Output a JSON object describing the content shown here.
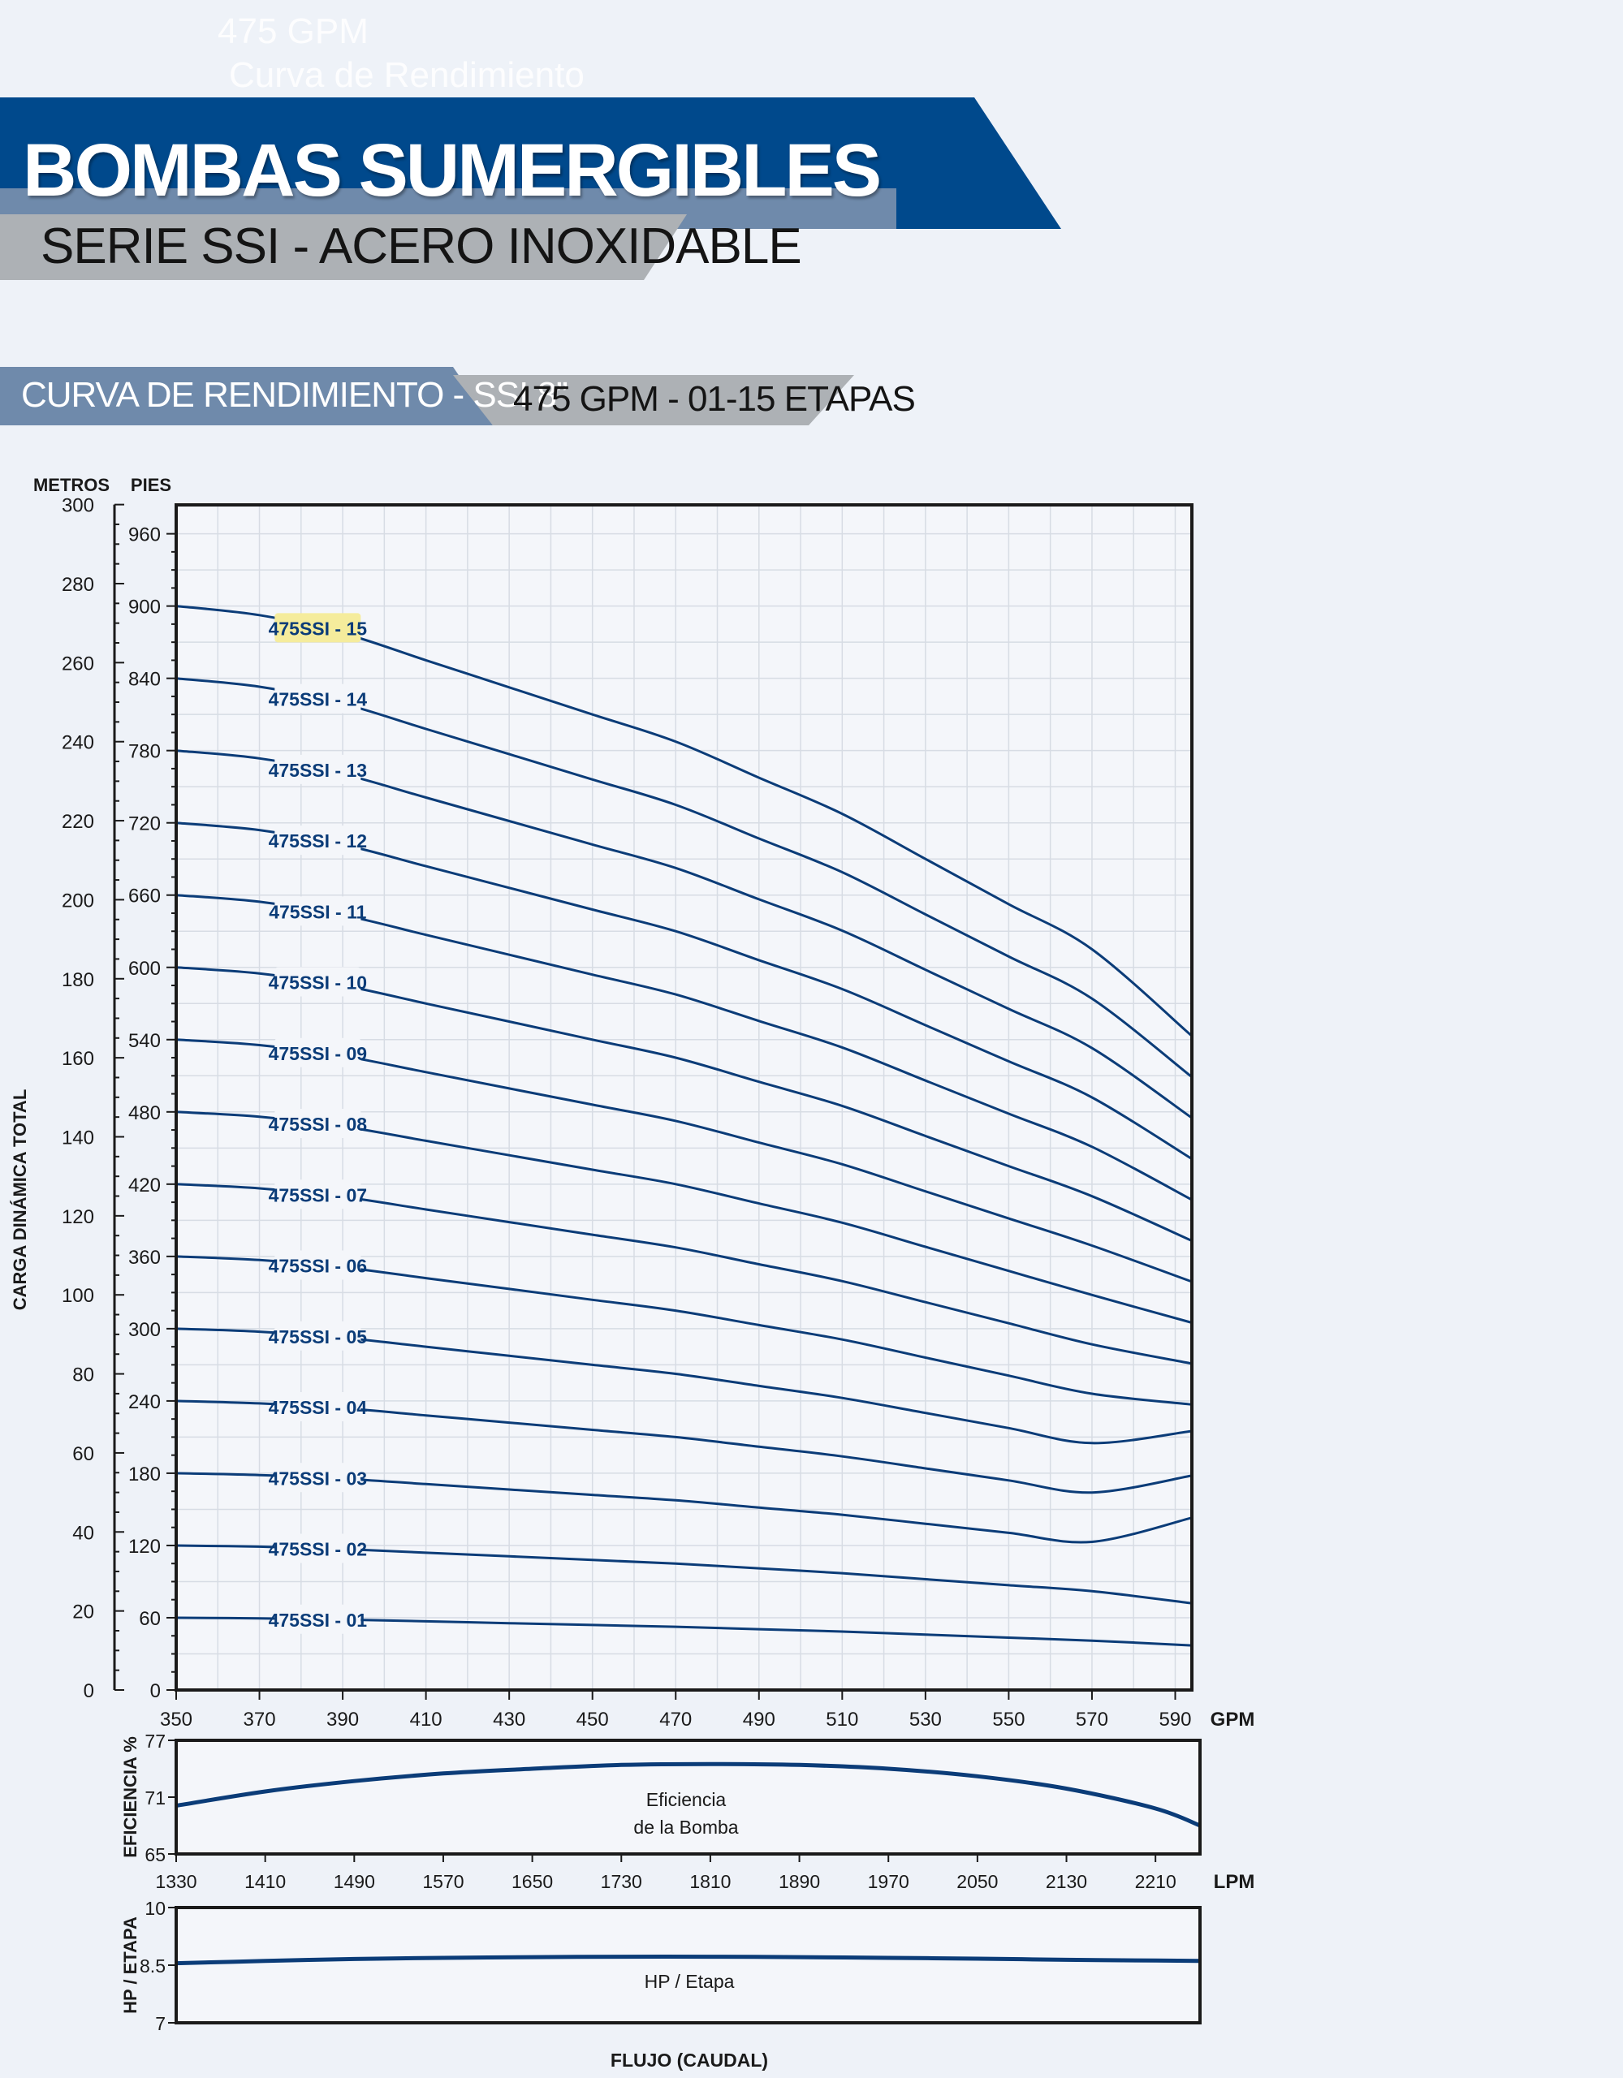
{
  "header": {
    "ghost_line1": "475 GPM",
    "ghost_line2": "Curva de Rendimiento",
    "title": "BOMBAS SUMERGIBLES",
    "subtitle": "SERIE SSI - ACERO INOXIDABLE",
    "strip_left": "CURVA DE RENDIMIENTO - SSI 8”",
    "strip_right": "475 GPM - 01-15 ETAPAS"
  },
  "colors": {
    "dark_blue": "#00498c",
    "steel_blue": "#6f8aab",
    "grey_band": "#adb1b5",
    "curve": "#0b3c78",
    "highlight": "#f5ec9c"
  },
  "chart_data": [
    {
      "type": "line",
      "name": "head",
      "y_left_label": "METROS",
      "y_right_label": "PIES",
      "axis_title": "CARGA DINÁMICA TOTAL",
      "x_unit": "GPM",
      "xlim": [
        350,
        594
      ],
      "ylim_ft": [
        0,
        984
      ],
      "x_ticks": [
        350,
        370,
        390,
        410,
        430,
        450,
        470,
        490,
        510,
        530,
        550,
        570,
        590
      ],
      "x_tick_labels": [
        "350",
        "370",
        "390",
        "410",
        "430",
        "450",
        "470",
        "490",
        "510",
        "530",
        "550",
        "570",
        "590"
      ],
      "ft_ticks": [
        0,
        60,
        120,
        180,
        240,
        300,
        360,
        420,
        480,
        540,
        600,
        660,
        720,
        780,
        840,
        900,
        960
      ],
      "ft_tick_labels": [
        "0",
        "60",
        "120",
        "180",
        "240",
        "300",
        "360",
        "420",
        "480",
        "540",
        "600",
        "660",
        "720",
        "780",
        "840",
        "900",
        "960"
      ],
      "m_ticks": [
        0,
        20,
        40,
        60,
        80,
        100,
        120,
        140,
        160,
        180,
        200,
        220,
        240,
        260,
        280,
        300
      ],
      "m_tick_labels": [
        "0",
        "20",
        "40",
        "60",
        "80",
        "100",
        "120",
        "140",
        "160",
        "180",
        "200",
        "220",
        "240",
        "260",
        "280",
        "300"
      ],
      "grid": true,
      "x": [
        350,
        370,
        390,
        410,
        430,
        450,
        470,
        490,
        510,
        530,
        550,
        570,
        594
      ],
      "series": [
        {
          "label": "475SSI - 01",
          "label_x": 384,
          "values": [
            60,
            59.5,
            58.5,
            57,
            55.5,
            54,
            52.5,
            50.5,
            48.5,
            46,
            43.5,
            41,
            37
          ]
        },
        {
          "label": "475SSI - 02",
          "label_x": 384,
          "values": [
            120,
            119,
            117,
            114,
            111,
            108,
            105,
            101,
            97,
            92,
            87,
            82,
            72
          ]
        },
        {
          "label": "475SSI - 03",
          "label_x": 384,
          "values": [
            180,
            178.5,
            175.5,
            171,
            166.5,
            162,
            157.5,
            151.5,
            145.5,
            138,
            130.5,
            123,
            143
          ]
        },
        {
          "label": "475SSI - 04",
          "label_x": 384,
          "values": [
            240,
            238,
            234,
            228,
            222,
            216,
            210,
            202,
            194,
            184,
            174,
            164,
            178
          ]
        },
        {
          "label": "475SSI - 05",
          "label_x": 384,
          "values": [
            300,
            297.5,
            292.5,
            285,
            277.5,
            270,
            262.5,
            252.5,
            242.5,
            230,
            217.5,
            205,
            215
          ]
        },
        {
          "label": "475SSI - 06",
          "label_x": 384,
          "values": [
            360,
            357,
            351,
            342,
            333,
            324,
            315,
            303,
            291,
            276,
            261,
            246,
            237
          ]
        },
        {
          "label": "475SSI - 07",
          "label_x": 384,
          "values": [
            420,
            416.5,
            409.5,
            399,
            388.5,
            378,
            367.5,
            353.5,
            339.5,
            322,
            304.5,
            287,
            271
          ]
        },
        {
          "label": "475SSI - 08",
          "label_x": 384,
          "values": [
            480,
            476,
            468,
            456,
            444,
            432,
            420,
            404,
            388,
            368,
            348,
            328,
            305
          ]
        },
        {
          "label": "475SSI - 09",
          "label_x": 384,
          "values": [
            540,
            535.5,
            526.5,
            513,
            499.5,
            486,
            472.5,
            454.5,
            436.5,
            414,
            391.5,
            369,
            339
          ]
        },
        {
          "label": "475SSI - 10",
          "label_x": 384,
          "values": [
            600,
            595,
            585,
            570,
            555,
            540,
            525,
            505,
            485,
            460,
            435,
            410,
            373
          ]
        },
        {
          "label": "475SSI - 11",
          "label_x": 384,
          "values": [
            660,
            654.5,
            643.5,
            627,
            610.5,
            594,
            577.5,
            555.5,
            533.5,
            506,
            478.5,
            451,
            407
          ]
        },
        {
          "label": "475SSI - 12",
          "label_x": 384,
          "values": [
            720,
            714,
            702,
            684,
            666,
            648,
            630,
            606,
            582,
            552,
            522,
            492,
            441
          ]
        },
        {
          "label": "475SSI - 13",
          "label_x": 384,
          "values": [
            780,
            773.5,
            760.5,
            741,
            721.5,
            702,
            682.5,
            656.5,
            630.5,
            598,
            565.5,
            533,
            475
          ]
        },
        {
          "label": "475SSI - 14",
          "label_x": 384,
          "values": [
            840,
            833,
            819,
            798,
            777,
            756,
            735,
            707,
            679,
            644,
            609,
            574,
            509
          ]
        },
        {
          "label": "475SSI - 15",
          "label_x": 384,
          "values": [
            900,
            892.5,
            877.5,
            855,
            832.5,
            810,
            787.5,
            757.5,
            727.5,
            690,
            652.5,
            615,
            543
          ],
          "highlighted": true
        }
      ]
    },
    {
      "type": "line",
      "name": "efficiency",
      "ylabel": "EFICIENCIA %",
      "ylim": [
        65,
        77
      ],
      "y_ticks": [
        65,
        71,
        77
      ],
      "y_tick_labels": [
        "65",
        "71",
        "77"
      ],
      "x_unit": "LPM",
      "xlim": [
        1330,
        2250
      ],
      "x_ticks": [
        1330,
        1410,
        1490,
        1570,
        1650,
        1730,
        1810,
        1890,
        1970,
        2050,
        2130,
        2210
      ],
      "x_tick_labels": [
        "1330",
        "1410",
        "1490",
        "1570",
        "1650",
        "1730",
        "1810",
        "1890",
        "1970",
        "2050",
        "2130",
        "2210"
      ],
      "x": [
        1330,
        1410,
        1490,
        1570,
        1650,
        1730,
        1810,
        1890,
        1970,
        2050,
        2130,
        2210,
        2250
      ],
      "values": [
        70.1,
        71.6,
        72.7,
        73.5,
        74.0,
        74.4,
        74.5,
        74.4,
        74.0,
        73.2,
        71.9,
        69.8,
        68.0
      ],
      "annotation": [
        "Eficiencia",
        "de la Bomba"
      ]
    },
    {
      "type": "line",
      "name": "hp_per_stage",
      "ylabel": "HP / ETAPA",
      "ylim": [
        7,
        10
      ],
      "y_ticks": [
        7,
        8.5,
        10
      ],
      "y_tick_labels": [
        "7",
        "8.5",
        "10"
      ],
      "xlabel": "FLUJO (CAUDAL)",
      "xlim": [
        1330,
        2250
      ],
      "x": [
        1330,
        1410,
        1490,
        1570,
        1650,
        1730,
        1810,
        1890,
        1970,
        2050,
        2130,
        2210,
        2250
      ],
      "values": [
        8.55,
        8.61,
        8.66,
        8.69,
        8.71,
        8.72,
        8.72,
        8.71,
        8.69,
        8.67,
        8.64,
        8.62,
        8.61
      ],
      "annotation": [
        "HP / Etapa"
      ]
    }
  ]
}
